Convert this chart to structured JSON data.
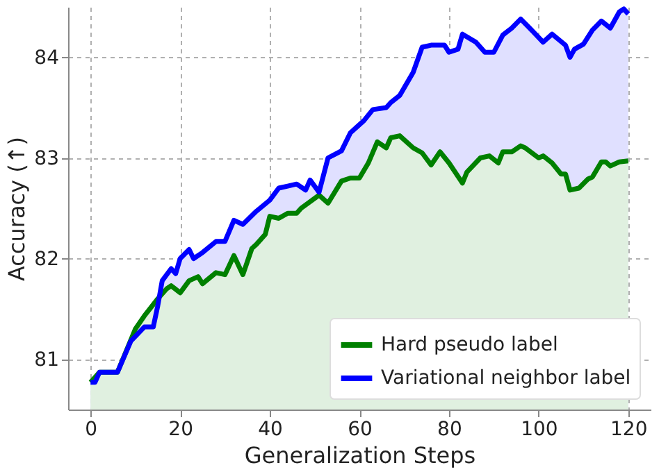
{
  "chart_data": {
    "type": "area",
    "xlabel": "Generalization Steps",
    "ylabel": "Accuracy (↑)",
    "xlim": [
      -5,
      125
    ],
    "ylim": [
      80.5,
      84.5
    ],
    "xticks": [
      0,
      20,
      40,
      60,
      80,
      100,
      120
    ],
    "yticks": [
      81,
      82,
      83,
      84
    ],
    "grid": true,
    "legend": "bottom right",
    "line_style": "solid",
    "marker": "none",
    "series": [
      {
        "name": "Hard pseudo label",
        "color": "#008000",
        "x": [
          0,
          2,
          6,
          10,
          12,
          15,
          17,
          18,
          20,
          22,
          24,
          25,
          28,
          30,
          32,
          34,
          36,
          37,
          39,
          40,
          42,
          44,
          46,
          47,
          51,
          53,
          56,
          58,
          60,
          62,
          64,
          66,
          67,
          69,
          72,
          74,
          76,
          78,
          80,
          83,
          84,
          87,
          89,
          91,
          92,
          94,
          96,
          97,
          100,
          101,
          103,
          105,
          106,
          107,
          109,
          111,
          112,
          114,
          115,
          116,
          118,
          120
        ],
        "values": [
          80.77,
          80.87,
          80.87,
          81.3,
          81.43,
          81.6,
          81.7,
          81.73,
          81.66,
          81.78,
          81.82,
          81.75,
          81.86,
          81.84,
          82.03,
          81.84,
          82.1,
          82.14,
          82.24,
          82.42,
          82.4,
          82.45,
          82.45,
          82.5,
          82.63,
          82.55,
          82.77,
          82.8,
          82.8,
          82.95,
          83.16,
          83.1,
          83.2,
          83.22,
          83.1,
          83.05,
          82.93,
          83.06,
          82.95,
          82.75,
          82.86,
          83.0,
          83.02,
          82.95,
          83.06,
          83.06,
          83.12,
          83.1,
          83.0,
          83.02,
          82.95,
          82.84,
          82.84,
          82.68,
          82.7,
          82.79,
          82.81,
          82.96,
          82.96,
          82.92,
          82.96,
          82.97
        ]
      },
      {
        "name": "Variational neighbor label",
        "color": "#0000ff",
        "x": [
          0,
          1,
          2,
          6,
          9,
          12,
          14,
          15,
          16,
          18,
          19,
          20,
          22,
          23,
          25,
          28,
          30,
          32,
          34,
          37,
          40,
          42,
          44,
          46,
          48,
          49,
          51,
          53,
          56,
          58,
          61,
          63,
          66,
          67,
          69,
          72,
          74,
          76,
          79,
          80,
          82,
          83,
          86,
          88,
          90,
          92,
          94,
          96,
          98,
          101,
          103,
          106,
          107,
          108,
          110,
          112,
          114,
          116,
          118,
          119,
          120
        ],
        "values": [
          80.77,
          80.77,
          80.87,
          80.87,
          81.18,
          81.32,
          81.32,
          81.53,
          81.78,
          81.9,
          81.85,
          82.0,
          82.09,
          82.0,
          82.06,
          82.17,
          82.17,
          82.38,
          82.34,
          82.47,
          82.58,
          82.7,
          82.72,
          82.74,
          82.68,
          82.78,
          82.66,
          83.0,
          83.07,
          83.25,
          83.37,
          83.48,
          83.5,
          83.55,
          83.62,
          83.85,
          84.1,
          84.12,
          84.12,
          84.05,
          84.08,
          84.23,
          84.15,
          84.05,
          84.05,
          84.22,
          84.29,
          84.38,
          84.29,
          84.15,
          84.23,
          84.12,
          84.0,
          84.08,
          84.13,
          84.27,
          84.36,
          84.29,
          84.45,
          84.48,
          84.43
        ]
      }
    ]
  }
}
